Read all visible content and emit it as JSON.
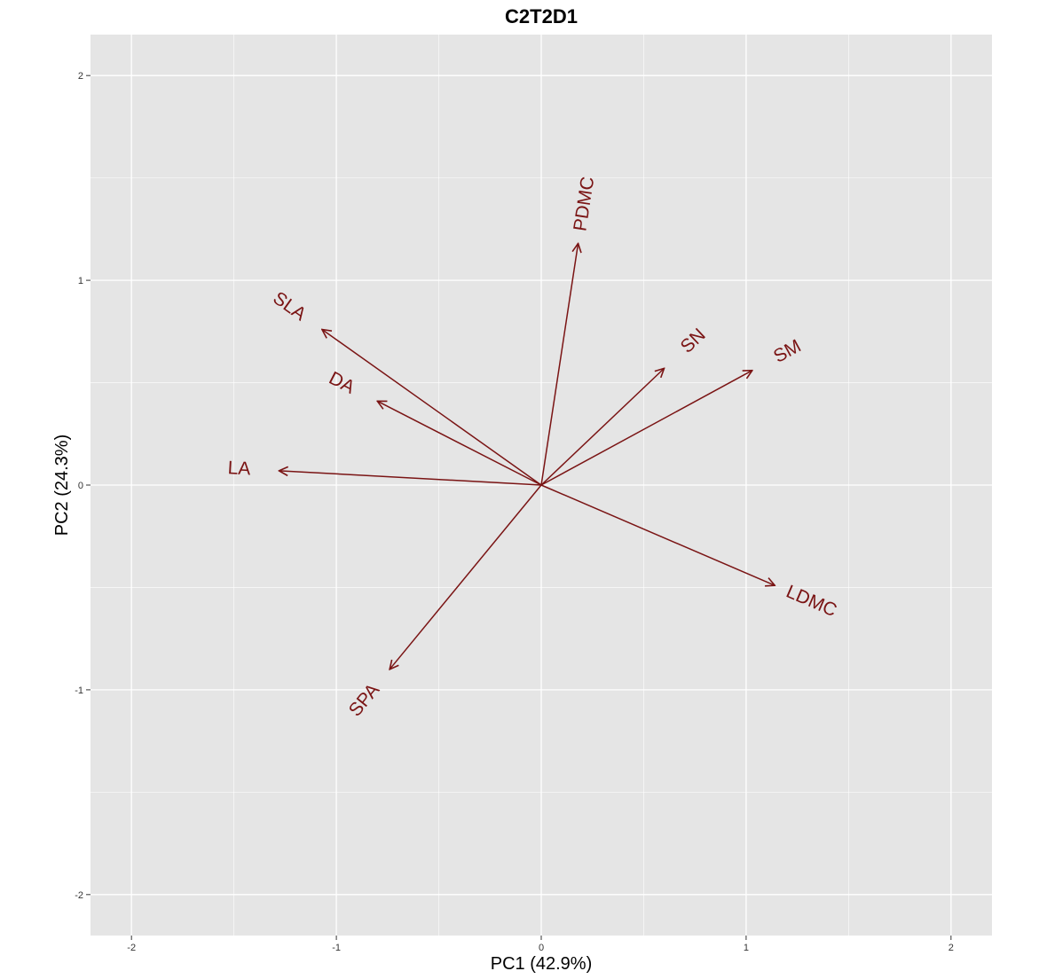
{
  "chart_data": {
    "type": "biplot",
    "title": "C2T2D1",
    "xlabel": "PC1 (42.9%)",
    "ylabel": "PC2 (24.3%)",
    "xlim": [
      -2.2,
      2.2
    ],
    "ylim": [
      -2.2,
      2.2
    ],
    "x_ticks": [
      -2,
      -1,
      0,
      1,
      2
    ],
    "y_ticks": [
      -2,
      -1,
      0,
      1,
      2
    ],
    "x_tick_labels": [
      "-2",
      "-1",
      "0",
      "1",
      "2"
    ],
    "y_tick_labels": [
      "-2",
      "-1",
      "0",
      "1",
      "2"
    ],
    "grid": true,
    "colors": {
      "arrow": "#7a1414",
      "panel": "#e5e5e5",
      "grid": "#ffffff"
    },
    "vectors": [
      {
        "label": "PDMC",
        "x": 0.18,
        "y": 1.18
      },
      {
        "label": "SLA",
        "x": -1.07,
        "y": 0.76
      },
      {
        "label": "DA",
        "x": -0.8,
        "y": 0.41
      },
      {
        "label": "LA",
        "x": -1.28,
        "y": 0.07
      },
      {
        "label": "SN",
        "x": 0.6,
        "y": 0.57
      },
      {
        "label": "SM",
        "x": 1.03,
        "y": 0.56
      },
      {
        "label": "LDMC",
        "x": 1.14,
        "y": -0.49
      },
      {
        "label": "SPA",
        "x": -0.74,
        "y": -0.9
      }
    ]
  }
}
